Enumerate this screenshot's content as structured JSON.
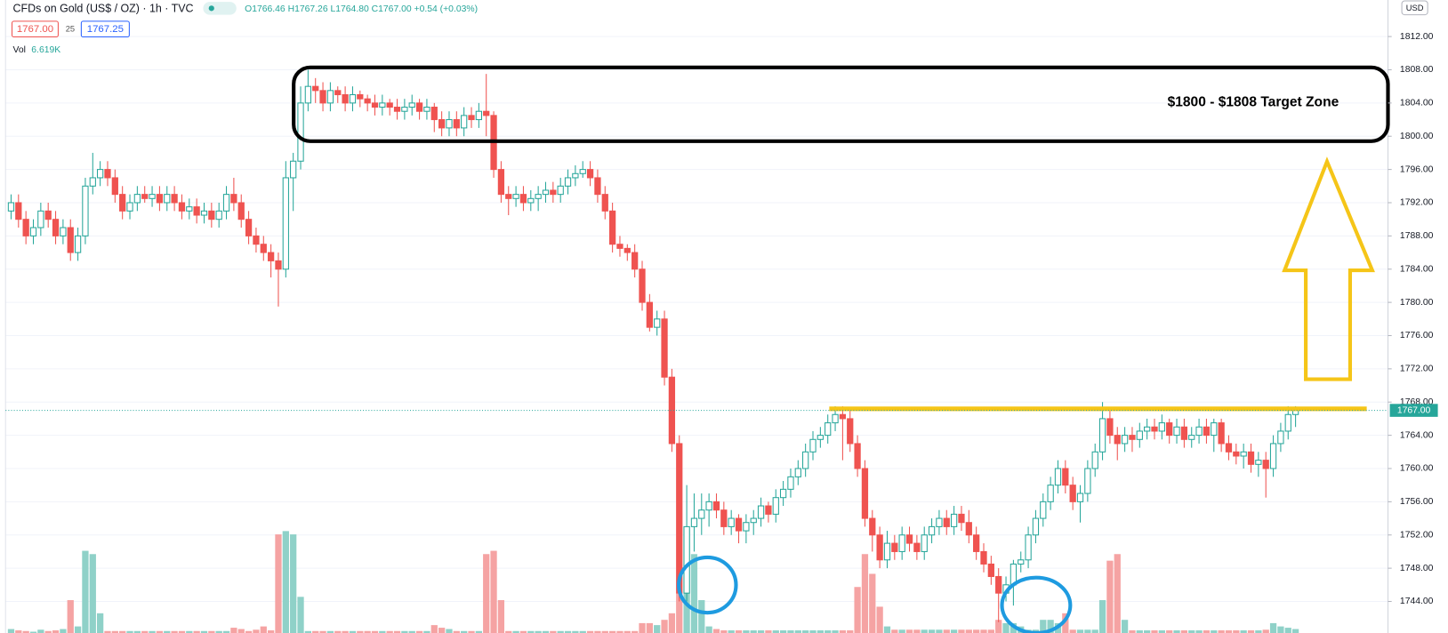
{
  "chart_data": {
    "type": "candlestick",
    "header": "CFDs on Gold (US$ / OZ) · 1h · TVC",
    "legend_ohlc": "O1766.46 H1767.26 L1764.80 C1767.00 +0.54 (+0.03%)",
    "bid": "1767.00",
    "spread": "25",
    "ask": "1767.25",
    "volume_label": "Vol",
    "volume_value": "6.619K",
    "currency": "USD",
    "annotation": "$1800 - $1808 Target Zone",
    "price_tag": "1767.00",
    "up_color": "#26a69a",
    "down_color": "#ef5350",
    "volume_up_color": "#8fd1c8",
    "volume_down_color": "#f5a3a3",
    "grid": true,
    "ylim": [
      1740.2,
      1816.4
    ],
    "yticks": [
      {
        "value": 1744,
        "label": "1744.00"
      },
      {
        "value": 1748,
        "label": "1748.00"
      },
      {
        "value": 1752,
        "label": "1752.00"
      },
      {
        "value": 1756,
        "label": "1756.00"
      },
      {
        "value": 1760,
        "label": "1760.00"
      },
      {
        "value": 1764,
        "label": "1764.00"
      },
      {
        "value": 1768,
        "label": "1768.00"
      },
      {
        "value": 1772,
        "label": "1772.00"
      },
      {
        "value": 1776,
        "label": "1776.00"
      },
      {
        "value": 1780,
        "label": "1780.00"
      },
      {
        "value": 1784,
        "label": "1784.00"
      },
      {
        "value": 1788,
        "label": "1788.00"
      },
      {
        "value": 1792,
        "label": "1792.00"
      },
      {
        "value": 1796,
        "label": "1796.00"
      },
      {
        "value": 1800,
        "label": "1800.00"
      },
      {
        "value": 1804,
        "label": "1804.00"
      },
      {
        "value": 1808,
        "label": "1808.00"
      },
      {
        "value": 1812,
        "label": "1812.00"
      }
    ],
    "open": [
      1791,
      1792,
      1790,
      1788,
      1789,
      1791,
      1790,
      1788,
      1789,
      1786,
      1788,
      1794,
      1795,
      1796,
      1795,
      1793,
      1791,
      1792,
      1793,
      1792.5,
      1793,
      1792,
      1793,
      1792,
      1791,
      1791.5,
      1790.5,
      1791,
      1790,
      1791,
      1793,
      1792,
      1790,
      1788,
      1787,
      1786,
      1785,
      1784,
      1795,
      1797,
      1804,
      1806,
      1805.5,
      1804,
      1805.5,
      1805,
      1804,
      1805,
      1804.5,
      1804,
      1803.5,
      1804,
      1803.5,
      1803,
      1803.5,
      1804,
      1803,
      1803.5,
      1802,
      1801,
      1802,
      1801,
      1802.5,
      1802,
      1803,
      1802.5,
      1796,
      1793,
      1792.5,
      1793,
      1792,
      1792.5,
      1793,
      1793.5,
      1793,
      1794,
      1795,
      1795.5,
      1796,
      1795,
      1793,
      1791,
      1787,
      1786.5,
      1786,
      1784,
      1780,
      1777,
      1778,
      1771,
      1763,
      1745,
      1753,
      1754,
      1755,
      1756,
      1755,
      1753,
      1754,
      1752.5,
      1753.5,
      1754,
      1755.5,
      1754.5,
      1756.5,
      1757.5,
      1759,
      1760,
      1762,
      1763.5,
      1764,
      1765.5,
      1766.5,
      1766,
      1763,
      1760,
      1754,
      1752,
      1749,
      1751,
      1750,
      1752,
      1751,
      1750,
      1752,
      1753,
      1754,
      1753,
      1754.5,
      1753.5,
      1752,
      1750,
      1748.5,
      1747,
      1745,
      1746,
      1748.5,
      1749,
      1752,
      1754,
      1756,
      1758,
      1760,
      1758,
      1756,
      1757,
      1760,
      1762,
      1766,
      1764,
      1763,
      1764,
      1763.5,
      1764.5,
      1765,
      1764.5,
      1765.5,
      1764,
      1765,
      1763.5,
      1764,
      1765,
      1764,
      1765.5,
      1763,
      1762,
      1761.5,
      1762,
      1760.5,
      1761,
      1760,
      1763,
      1764.5,
      1766.5
    ],
    "high": [
      1793,
      1793,
      1791,
      1790,
      1792,
      1792,
      1791,
      1790,
      1790,
      1789,
      1795,
      1798,
      1797,
      1797,
      1796,
      1794,
      1793,
      1794,
      1794,
      1794,
      1794,
      1794,
      1794,
      1793,
      1792.5,
      1792.5,
      1792,
      1792,
      1792,
      1794,
      1795,
      1793,
      1791,
      1789,
      1788,
      1787,
      1786,
      1797,
      1798,
      1806,
      1808,
      1807,
      1806.5,
      1806.5,
      1806,
      1806,
      1806,
      1805.5,
      1805,
      1805,
      1805,
      1804.5,
      1804.5,
      1804.5,
      1805,
      1804.5,
      1804.5,
      1804,
      1803,
      1803,
      1803,
      1803.5,
      1803.5,
      1804,
      1807.5,
      1803,
      1797,
      1794,
      1794,
      1794,
      1793.5,
      1794,
      1794.5,
      1794.5,
      1795,
      1796,
      1796.5,
      1797,
      1797,
      1796,
      1794,
      1792,
      1788,
      1787,
      1787,
      1785,
      1781,
      1779,
      1779,
      1772,
      1764,
      1758,
      1757,
      1757,
      1757,
      1757,
      1756,
      1755,
      1754.5,
      1754.5,
      1755,
      1756.5,
      1756,
      1757.5,
      1758.5,
      1760,
      1761,
      1763,
      1764.5,
      1765,
      1766.5,
      1767.5,
      1767.5,
      1767,
      1764,
      1761,
      1755,
      1753,
      1752.5,
      1752,
      1753,
      1753,
      1752,
      1753,
      1754,
      1755,
      1755,
      1755.5,
      1755.5,
      1755,
      1753,
      1751,
      1749.5,
      1748,
      1747,
      1749,
      1750,
      1753,
      1755,
      1757,
      1759,
      1761,
      1761,
      1759,
      1758,
      1761,
      1763,
      1768,
      1767,
      1765,
      1765,
      1765,
      1765.5,
      1766,
      1766,
      1766.5,
      1766,
      1766,
      1766,
      1765,
      1766,
      1766,
      1766,
      1766,
      1764,
      1763,
      1763,
      1763,
      1762,
      1762,
      1764,
      1765.5,
      1767.5,
      1767.5
    ],
    "low": [
      1790,
      1789,
      1787,
      1787,
      1788,
      1789,
      1787,
      1787,
      1785,
      1785,
      1787,
      1793,
      1794,
      1794,
      1792,
      1790,
      1790,
      1791,
      1792,
      1791.5,
      1791,
      1791,
      1791,
      1790,
      1790,
      1789.5,
      1789.5,
      1789,
      1789,
      1790,
      1791,
      1789,
      1787,
      1786,
      1785,
      1783,
      1779.5,
      1783,
      1791,
      1796,
      1803,
      1804,
      1803,
      1803,
      1804,
      1803,
      1803,
      1803.5,
      1803,
      1802.5,
      1802.5,
      1802.5,
      1802,
      1802,
      1802.5,
      1802,
      1802,
      1800.5,
      1800,
      1800,
      1800,
      1800,
      1801,
      1801,
      1800,
      1795,
      1792,
      1790.5,
      1791.5,
      1791,
      1791,
      1791,
      1792,
      1792,
      1792,
      1793,
      1794,
      1795,
      1794,
      1792,
      1790,
      1786,
      1785.5,
      1785,
      1783,
      1779,
      1776.5,
      1776,
      1770,
      1762,
      1744,
      1744,
      1750,
      1752,
      1753,
      1754,
      1752,
      1752,
      1751,
      1751,
      1752,
      1753,
      1753.5,
      1753.5,
      1755.5,
      1756.5,
      1758,
      1759,
      1761,
      1762.5,
      1763,
      1764.5,
      1761,
      1762,
      1759,
      1753,
      1750,
      1748,
      1748,
      1749,
      1749,
      1750,
      1749,
      1749,
      1751,
      1752,
      1752,
      1752,
      1752.5,
      1751,
      1749,
      1747.5,
      1746,
      1741.5,
      1744,
      1743.5,
      1747.5,
      1748,
      1751,
      1753,
      1755,
      1757,
      1757,
      1755,
      1753.5,
      1756,
      1759,
      1761,
      1763,
      1761,
      1762,
      1762,
      1762.5,
      1763.5,
      1763.5,
      1763.5,
      1763,
      1763,
      1762.5,
      1762.5,
      1763,
      1763,
      1762,
      1762,
      1761,
      1760.5,
      1760,
      1759.5,
      1759,
      1756.5,
      1759,
      1762,
      1763.5,
      1765
    ],
    "close": [
      1792,
      1790,
      1788,
      1789,
      1791,
      1790,
      1788,
      1789,
      1786,
      1788,
      1794,
      1795,
      1796,
      1795,
      1793,
      1791,
      1792,
      1793,
      1792.5,
      1793,
      1792,
      1793,
      1792,
      1791,
      1791.5,
      1790.5,
      1791,
      1790,
      1791,
      1793,
      1792,
      1790,
      1788,
      1787,
      1786,
      1785,
      1784,
      1795,
      1797,
      1804,
      1806,
      1805.5,
      1804,
      1805.5,
      1805,
      1804,
      1805,
      1804.5,
      1804,
      1803.5,
      1804,
      1803.5,
      1803,
      1803.5,
      1804,
      1803,
      1803.5,
      1802,
      1801,
      1802,
      1801,
      1802.5,
      1802,
      1803,
      1802.5,
      1796,
      1793,
      1792.5,
      1793,
      1792,
      1792.5,
      1793,
      1793.5,
      1793,
      1794,
      1795,
      1795.5,
      1796,
      1795,
      1793,
      1791,
      1787,
      1786.5,
      1786,
      1784,
      1780,
      1777,
      1778,
      1771,
      1763,
      1745,
      1753,
      1754,
      1755,
      1756,
      1755,
      1753,
      1754,
      1752.5,
      1753.5,
      1754,
      1755.5,
      1754.5,
      1756.5,
      1757.5,
      1759,
      1760,
      1762,
      1763.5,
      1764,
      1765.5,
      1766.5,
      1766,
      1763,
      1760,
      1754,
      1752,
      1749,
      1751,
      1750,
      1752,
      1751,
      1750,
      1752,
      1753,
      1754,
      1753,
      1754.5,
      1753.5,
      1752,
      1750,
      1748.5,
      1747,
      1745,
      1746,
      1748.5,
      1749,
      1752,
      1754,
      1756,
      1758,
      1760,
      1758,
      1756,
      1757,
      1760,
      1762,
      1766,
      1764,
      1763,
      1764,
      1763.5,
      1764.5,
      1765,
      1764.5,
      1765.5,
      1764,
      1765,
      1763.5,
      1764,
      1765,
      1764,
      1765.5,
      1763,
      1762,
      1761.5,
      1762,
      1760.5,
      1761,
      1760,
      1763,
      1764.5,
      1766.5,
      1767
    ],
    "volume": [
      0.6,
      0.4,
      0.3,
      0.2,
      0.5,
      0.3,
      0.4,
      0.6,
      5,
      1,
      12.5,
      12,
      3,
      0.3,
      0.3,
      0.3,
      0.3,
      0.3,
      0.3,
      0.3,
      0.3,
      0.3,
      0.3,
      0.3,
      0.3,
      0.3,
      0.3,
      0.3,
      0.3,
      0.3,
      0.8,
      0.6,
      0.3,
      0.5,
      1,
      0.4,
      15,
      15.5,
      15,
      5.5,
      0.3,
      0.3,
      0.3,
      0.3,
      0.3,
      0.3,
      0.3,
      0.3,
      0.3,
      0.3,
      0.3,
      0.3,
      0.3,
      0.3,
      0.3,
      0.3,
      0.3,
      1.2,
      0.8,
      0.6,
      0.3,
      0.3,
      0.3,
      0.3,
      12,
      12.5,
      5,
      0.3,
      0.3,
      0.3,
      0.3,
      0.3,
      0.3,
      0.3,
      0.3,
      0.3,
      0.3,
      0.3,
      0.3,
      0.3,
      0.3,
      0.3,
      0.3,
      0.3,
      0.3,
      1.5,
      1.5,
      1.2,
      2,
      3,
      6,
      16,
      12,
      5,
      1,
      0.6,
      0.4,
      0.4,
      0.4,
      0.4,
      0.4,
      0.4,
      0.4,
      0.4,
      0.4,
      0.4,
      0.4,
      0.4,
      0.4,
      0.4,
      0.4,
      0.4,
      0.4,
      0.4,
      7,
      12,
      9,
      4,
      1,
      0.5,
      0.5,
      0.5,
      0.5,
      0.5,
      0.5,
      0.5,
      0.5,
      0.5,
      0.5,
      0.5,
      0.5,
      0.5,
      0.5,
      2,
      1.5,
      1.5,
      1,
      0.5,
      0.5,
      2,
      2,
      1.5,
      3,
      0.5,
      0.5,
      0.5,
      0.5,
      5,
      11,
      12,
      2,
      0.4,
      0.4,
      0.4,
      0.4,
      0.4,
      0.4,
      0.4,
      0.4,
      0.4,
      0.4,
      0.4,
      0.4,
      0.4,
      0.4,
      0.4,
      0.4,
      0.4,
      0.4,
      0.5,
      1.5,
      1,
      0.8,
      0.6
    ]
  }
}
